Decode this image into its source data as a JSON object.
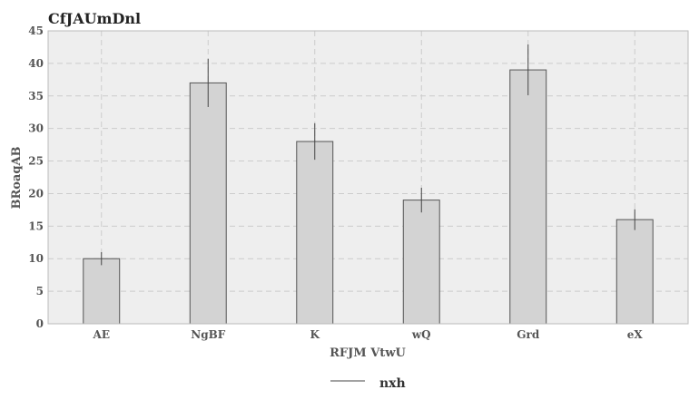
{
  "chart_data": {
    "type": "bar",
    "title": "CfJAUmDnl",
    "xlabel": "RFJM VtwU",
    "ylabel": "BRoaqAB",
    "categories": [
      "AE",
      "NgBF",
      "K",
      "wQ",
      "Grd",
      "eX"
    ],
    "series": [
      {
        "name": "nxh",
        "values": [
          10,
          37,
          28,
          19,
          39,
          16
        ],
        "error": [
          1.0,
          3.7,
          2.8,
          1.9,
          3.9,
          1.6
        ]
      }
    ],
    "ylim": [
      0,
      45
    ],
    "yticks": [
      0,
      5,
      10,
      15,
      20,
      25,
      30,
      35,
      40,
      45
    ],
    "grid": true,
    "legend_position": "bottom-center",
    "colors": {
      "bar_fill": "#d3d3d3",
      "bar_stroke": "#555555",
      "error_bar": "#444444",
      "plot_background": "#eeeeee",
      "grid": "#cccccc",
      "frame": "#bbbbbb"
    }
  }
}
